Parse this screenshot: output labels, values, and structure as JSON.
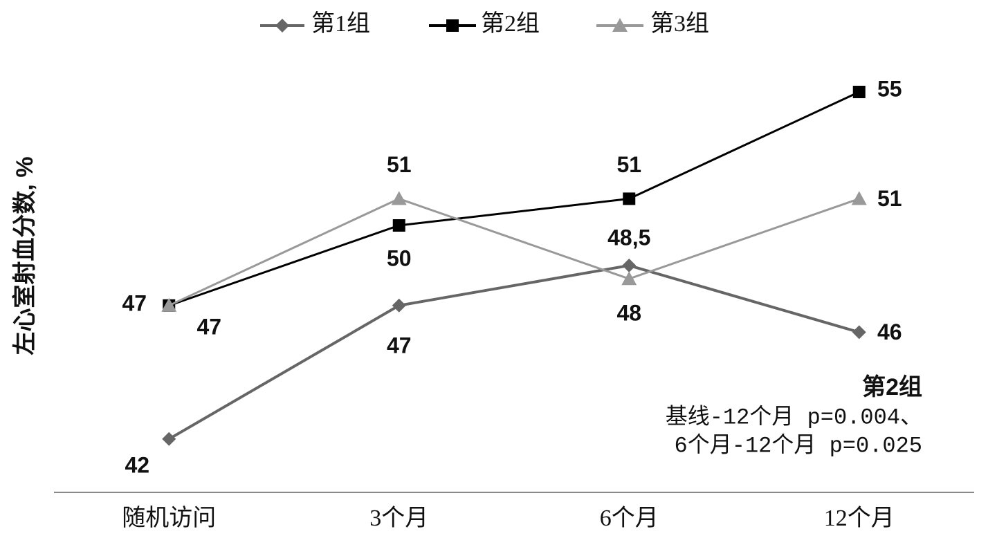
{
  "chart_data": {
    "type": "line",
    "ylabel": "左心室射血分数, %",
    "categories": [
      "随机访问",
      "3个月",
      "6个月",
      "12个月"
    ],
    "series": [
      {
        "name": "第1组",
        "color": "#666666",
        "marker": "diamond",
        "values": [
          42,
          47,
          48.5,
          46
        ],
        "value_labels": [
          "42",
          "47",
          "48,5",
          "46"
        ]
      },
      {
        "name": "第2组",
        "color": "#000000",
        "marker": "square",
        "values": [
          47,
          50,
          51,
          55
        ]
      },
      {
        "name": "第3组",
        "color": "#999999",
        "marker": "triangle",
        "values": [
          47,
          51,
          48,
          51
        ]
      }
    ],
    "ylim": [
      40,
      56
    ],
    "annotations": [
      "第2组",
      "基线-12个月 p=0.004、",
      "6个月-12个月 p=0.025"
    ]
  }
}
